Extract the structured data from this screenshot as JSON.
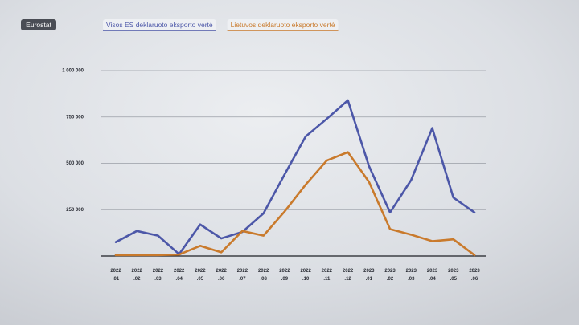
{
  "chart_data": {
    "type": "line",
    "source": "Eurostat",
    "categories": [
      "2022.01",
      "2022.02",
      "2022.03",
      "2022.04",
      "2022.05",
      "2022.06",
      "2022.07",
      "2022.08",
      "2022.09",
      "2022.10",
      "2022.11",
      "2022.12",
      "2023.01",
      "2023.02",
      "2023.03",
      "2023.04",
      "2023.05",
      "2023.06"
    ],
    "series": [
      {
        "name": "Visos ES deklaruoto eksporto vertė",
        "color": "#4c57a8",
        "values": [
          75000,
          135000,
          110000,
          10000,
          170000,
          95000,
          130000,
          230000,
          440000,
          645000,
          740000,
          840000,
          485000,
          235000,
          410000,
          690000,
          315000,
          235000
        ]
      },
      {
        "name": "Lietuvos deklaruoto eksporto vertė",
        "color": "#c97a2c",
        "values": [
          5000,
          5000,
          5000,
          8000,
          55000,
          20000,
          135000,
          110000,
          240000,
          385000,
          515000,
          560000,
          400000,
          145000,
          115000,
          80000,
          90000,
          5000
        ]
      }
    ],
    "ylim": [
      0,
      1000000
    ],
    "yticks": [
      {
        "value": 250000,
        "label": "250 000"
      },
      {
        "value": 500000,
        "label": "500 000"
      },
      {
        "value": 750000,
        "label": "750 000"
      },
      {
        "value": 1000000,
        "label": "1 000 000"
      }
    ],
    "grid": true
  }
}
